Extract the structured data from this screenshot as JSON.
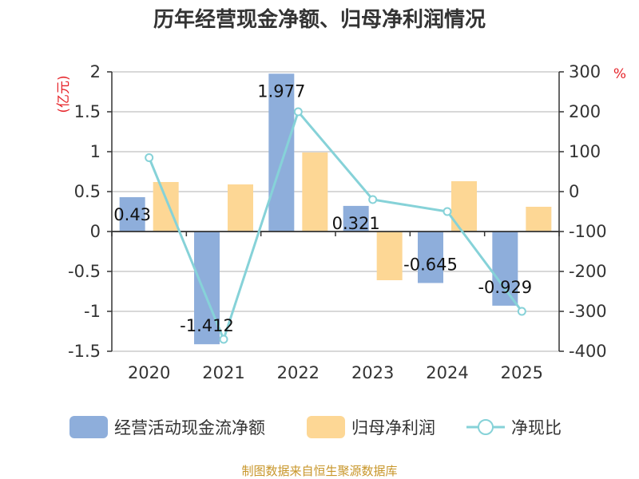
{
  "chart_data": {
    "type": "bar+line",
    "title": "历年经营现金净额、归母净利润情况",
    "categories": [
      "2020",
      "2021",
      "2022",
      "2023",
      "2024",
      "2025"
    ],
    "left_axis": {
      "unit": "(亿元)",
      "ylim": [
        -1.5,
        2
      ],
      "ticks": [
        "2",
        "1.5",
        "1",
        "0.5",
        "0",
        "-0.5",
        "-1",
        "-1.5"
      ]
    },
    "right_axis": {
      "unit": "%",
      "ylim": [
        -400,
        300
      ],
      "ticks": [
        "300",
        "200",
        "100",
        "0",
        "-100",
        "-200",
        "-300",
        "-400"
      ]
    },
    "series": [
      {
        "name": "经营活动现金流净额",
        "type": "bar",
        "axis": "left",
        "color": "#8eaedb",
        "values": [
          0.43,
          -1.412,
          1.977,
          0.321,
          -0.645,
          -0.929
        ],
        "labels": [
          "0.43",
          "-1.412",
          "1.977",
          "0.321",
          "-0.645",
          "-0.929"
        ]
      },
      {
        "name": "归母净利润",
        "type": "bar",
        "axis": "left",
        "color": "#fdd795",
        "values": [
          0.62,
          0.59,
          0.99,
          -0.61,
          0.63,
          0.31
        ]
      },
      {
        "name": "净现比",
        "type": "line",
        "axis": "right",
        "color": "#86d2d8",
        "values": [
          85,
          -370,
          200,
          -20,
          -50,
          -300
        ]
      }
    ],
    "legend": [
      "经营活动现金流净额",
      "归母净利润",
      "净现比"
    ],
    "source": "制图数据来自恒生聚源数据库"
  }
}
